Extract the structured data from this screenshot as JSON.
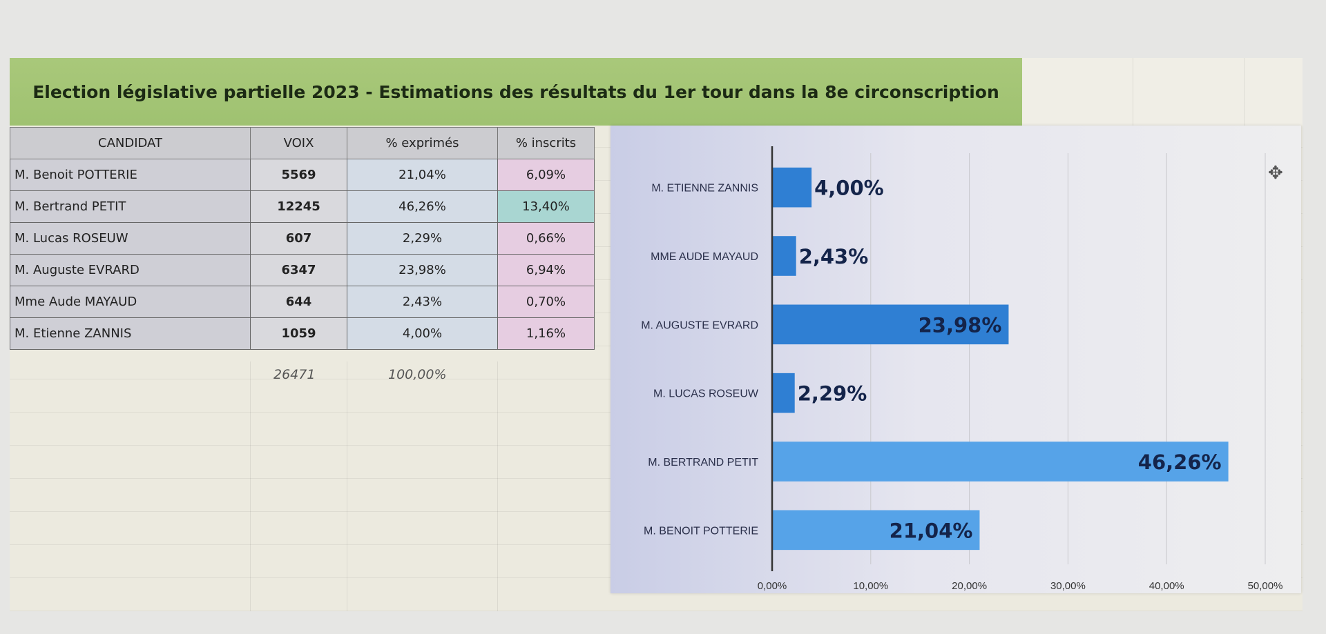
{
  "title": "Election législative partielle 2023 - Estimations des résultats du 1er tour dans la 8e circonscription",
  "table": {
    "headers": [
      "CANDIDAT",
      "VOIX",
      "% exprimés",
      "% inscrits"
    ],
    "rows": [
      {
        "candidat": "M. Benoit POTTERIE",
        "voix": "5569",
        "exprimes": "21,04%",
        "inscrits": "6,09%"
      },
      {
        "candidat": "M. Bertrand PETIT",
        "voix": "12245",
        "exprimes": "46,26%",
        "inscrits": "13,40%"
      },
      {
        "candidat": "M. Lucas ROSEUW",
        "voix": "607",
        "exprimes": "2,29%",
        "inscrits": "0,66%"
      },
      {
        "candidat": "M. Auguste EVRARD",
        "voix": "6347",
        "exprimes": "23,98%",
        "inscrits": "6,94%"
      },
      {
        "candidat": "Mme Aude MAYAUD",
        "voix": "644",
        "exprimes": "2,43%",
        "inscrits": "0,70%"
      },
      {
        "candidat": "M. Etienne ZANNIS",
        "voix": "1059",
        "exprimes": "4,00%",
        "inscrits": "1,16%"
      }
    ],
    "total_voix": "26471",
    "total_exprimes": "100,00%"
  },
  "colors": {
    "title_band": "#a5c677",
    "bar": "#2f7fd3",
    "bar_light": "#56a3e8",
    "highlight_cell": "#a9d6d2",
    "inscrits_cell": "#e6cde1"
  },
  "chart_data": {
    "type": "bar",
    "orientation": "horizontal",
    "categories": [
      "M. ETIENNE ZANNIS",
      "MME AUDE MAYAUD",
      "M. AUGUSTE EVRARD",
      "M. LUCAS ROSEUW",
      "M. BERTRAND PETIT",
      "M. BENOIT POTTERIE"
    ],
    "values": [
      4.0,
      2.43,
      23.98,
      2.29,
      46.26,
      21.04
    ],
    "data_labels": [
      "4,00%",
      "2,43%",
      "23,98%",
      "2,29%",
      "46,26%",
      "21,04%"
    ],
    "xlim": [
      0,
      50
    ],
    "x_ticks": [
      "0,00%",
      "10,00%",
      "20,00%",
      "30,00%",
      "40,00%",
      "50,00%"
    ],
    "grid": true,
    "title": "",
    "xlabel": "",
    "ylabel": ""
  }
}
